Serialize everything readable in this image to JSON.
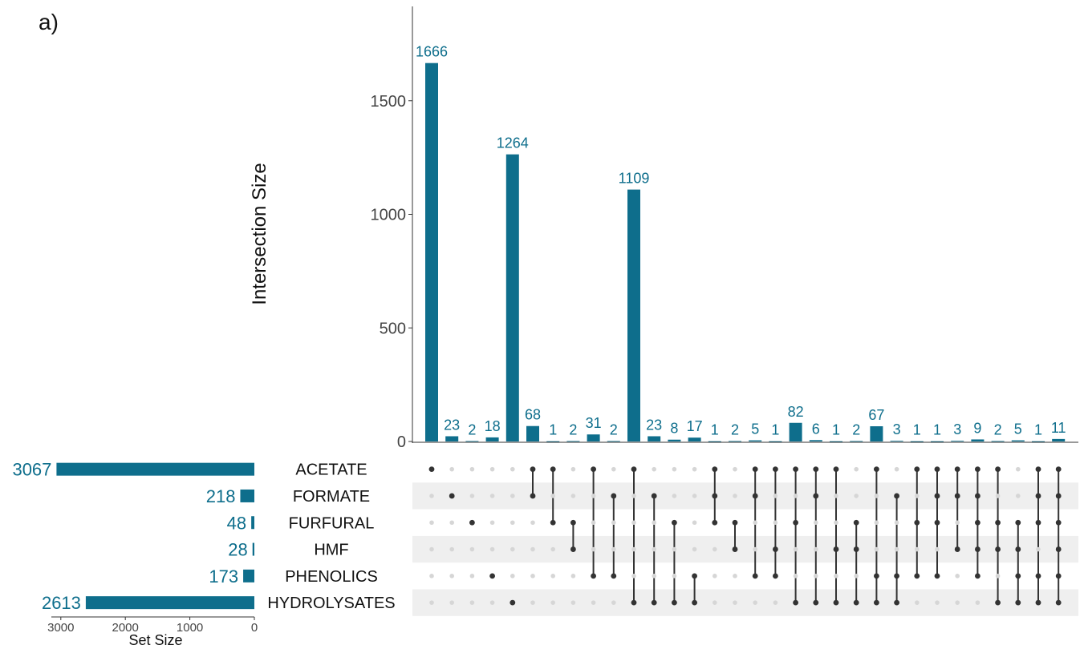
{
  "panel_label": "a)",
  "chart_data": {
    "type": "bar",
    "subtype": "upset",
    "bar_color": "#0e6e8c",
    "label_color": "#0e6e8c",
    "ylabel": "Intersection Size",
    "ylim": [
      0,
      1900
    ],
    "yticks": [
      0,
      500,
      1000,
      1500
    ],
    "sets": [
      "ACETATE",
      "FORMATE",
      "FURFURAL",
      "HMF",
      "PHENOLICS",
      "HYDROLYSATES"
    ],
    "set_sizes": [
      3067,
      218,
      48,
      28,
      173,
      2613
    ],
    "set_size_label": "Set Size",
    "set_size_ticks": [
      3000,
      2000,
      1000,
      0
    ],
    "set_size_lim": [
      0,
      3100
    ],
    "intersections": [
      {
        "value": 1666,
        "members": [
          0
        ]
      },
      {
        "value": 23,
        "members": [
          1
        ]
      },
      {
        "value": 2,
        "members": [
          2
        ]
      },
      {
        "value": 18,
        "members": [
          4
        ]
      },
      {
        "value": 1264,
        "members": [
          5
        ]
      },
      {
        "value": 68,
        "members": [
          0,
          1
        ]
      },
      {
        "value": 1,
        "members": [
          0,
          2
        ]
      },
      {
        "value": 2,
        "members": [
          2,
          3
        ]
      },
      {
        "value": 31,
        "members": [
          0,
          4
        ]
      },
      {
        "value": 2,
        "members": [
          1,
          4
        ]
      },
      {
        "value": 1109,
        "members": [
          0,
          5
        ]
      },
      {
        "value": 23,
        "members": [
          1,
          5
        ]
      },
      {
        "value": 8,
        "members": [
          2,
          5
        ]
      },
      {
        "value": 17,
        "members": [
          4,
          5
        ]
      },
      {
        "value": 1,
        "members": [
          0,
          1,
          2
        ]
      },
      {
        "value": 2,
        "members": [
          2,
          3
        ]
      },
      {
        "value": 5,
        "members": [
          0,
          1,
          4
        ]
      },
      {
        "value": 1,
        "members": [
          0,
          3,
          4
        ]
      },
      {
        "value": 82,
        "members": [
          0,
          2,
          5
        ]
      },
      {
        "value": 6,
        "members": [
          0,
          1,
          5
        ]
      },
      {
        "value": 1,
        "members": [
          0,
          3,
          5
        ]
      },
      {
        "value": 2,
        "members": [
          2,
          3,
          5
        ]
      },
      {
        "value": 67,
        "members": [
          0,
          4,
          5
        ]
      },
      {
        "value": 3,
        "members": [
          1,
          4,
          5
        ]
      },
      {
        "value": 1,
        "members": [
          0,
          2,
          4
        ]
      },
      {
        "value": 1,
        "members": [
          0,
          1,
          2,
          4
        ]
      },
      {
        "value": 3,
        "members": [
          0,
          1,
          3
        ]
      },
      {
        "value": 9,
        "members": [
          0,
          1,
          2,
          3,
          4
        ]
      },
      {
        "value": 2,
        "members": [
          0,
          2,
          3,
          5
        ]
      },
      {
        "value": 5,
        "members": [
          2,
          3,
          4,
          5
        ]
      },
      {
        "value": 1,
        "members": [
          0,
          1,
          2,
          4,
          5
        ]
      },
      {
        "value": 11,
        "members": [
          0,
          1,
          2,
          3,
          4,
          5
        ]
      }
    ]
  }
}
